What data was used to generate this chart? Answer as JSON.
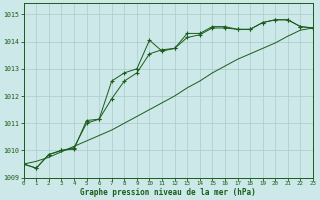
{
  "xlabel": "Graphe pression niveau de la mer (hPa)",
  "bg_color": "#cce8e8",
  "line_color": "#1a5c1a",
  "grid_color": "#aacccc",
  "ylim": [
    1009,
    1015.4
  ],
  "xlim": [
    0,
    23
  ],
  "yticks": [
    1009,
    1010,
    1011,
    1012,
    1013,
    1014,
    1015
  ],
  "xticks": [
    0,
    1,
    2,
    3,
    4,
    5,
    6,
    7,
    8,
    9,
    10,
    11,
    12,
    13,
    14,
    15,
    16,
    17,
    18,
    19,
    20,
    21,
    22,
    23
  ],
  "line1_x": [
    0,
    1,
    2,
    3,
    4,
    5,
    6,
    7,
    8,
    9,
    10,
    11,
    12,
    13,
    14,
    15,
    16,
    17,
    18,
    19,
    20,
    21,
    22,
    23
  ],
  "line1_y": [
    1009.5,
    1009.35,
    1009.85,
    1010.0,
    1010.05,
    1011.1,
    1011.15,
    1012.55,
    1012.85,
    1013.0,
    1014.05,
    1013.65,
    1013.75,
    1014.3,
    1014.3,
    1014.55,
    1014.55,
    1014.45,
    1014.45,
    1014.7,
    1014.8,
    1014.8,
    1014.55,
    1014.5
  ],
  "line2_x": [
    0,
    1,
    2,
    3,
    4,
    5,
    6,
    7,
    8,
    9,
    10,
    11,
    12,
    13,
    14,
    15,
    16,
    17,
    18,
    19,
    20,
    21,
    22,
    23
  ],
  "line2_y": [
    1009.5,
    1009.35,
    1009.85,
    1010.0,
    1010.1,
    1011.0,
    1011.15,
    1011.9,
    1012.55,
    1012.85,
    1013.55,
    1013.7,
    1013.75,
    1014.15,
    1014.25,
    1014.5,
    1014.5,
    1014.45,
    1014.45,
    1014.7,
    1014.8,
    1014.8,
    1014.55,
    1014.5
  ],
  "line3_x": [
    0,
    1,
    2,
    3,
    4,
    5,
    6,
    7,
    8,
    9,
    10,
    11,
    12,
    13,
    14,
    15,
    16,
    17,
    18,
    19,
    20,
    21,
    22,
    23
  ],
  "line3_y": [
    1009.5,
    1009.6,
    1009.75,
    1009.95,
    1010.15,
    1010.35,
    1010.55,
    1010.75,
    1011.0,
    1011.25,
    1011.5,
    1011.75,
    1012.0,
    1012.3,
    1012.55,
    1012.85,
    1013.1,
    1013.35,
    1013.55,
    1013.75,
    1013.95,
    1014.2,
    1014.42,
    1014.5
  ]
}
